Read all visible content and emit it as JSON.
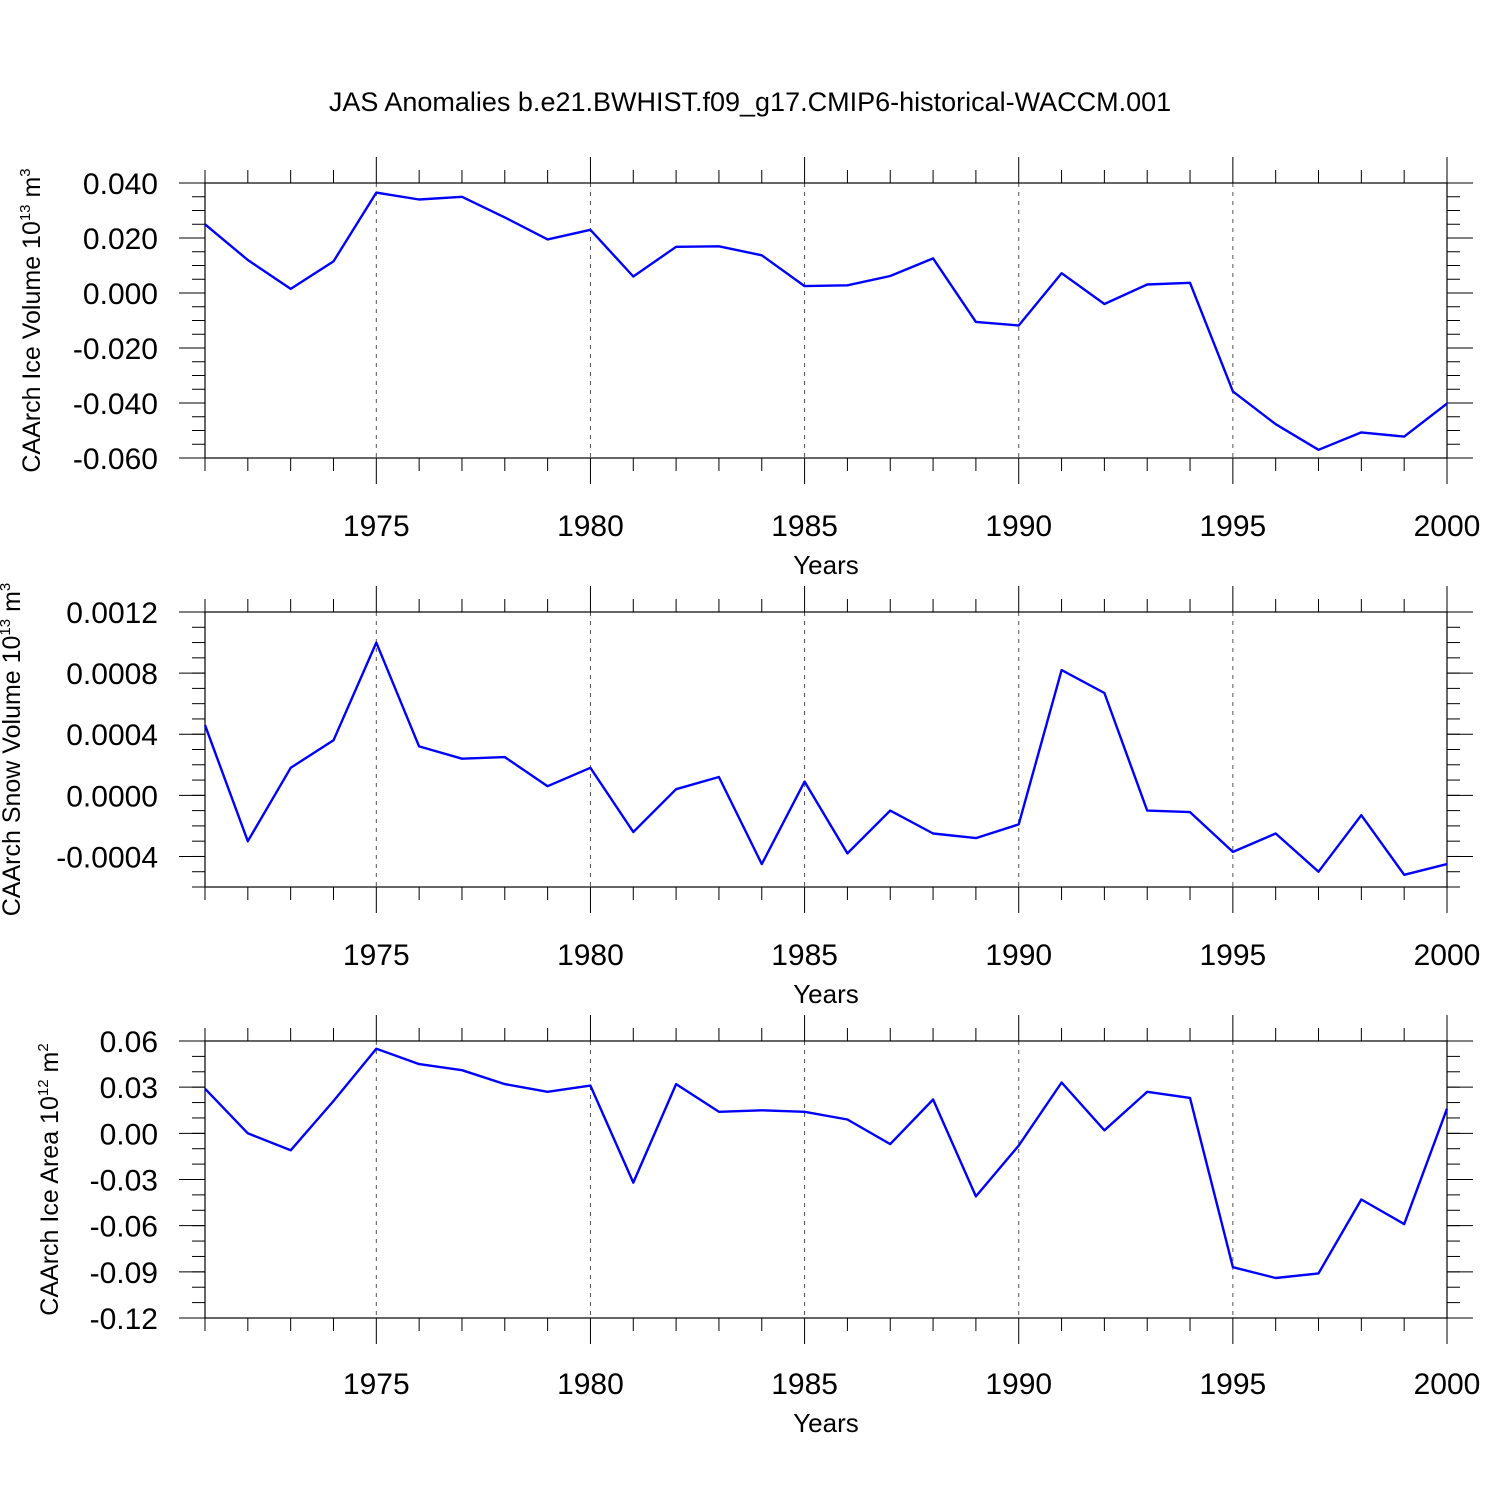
{
  "title": "JAS Anomalies b.e21.BWHIST.f09_g17.CMIP6-historical-WACCM.001",
  "line_color": "#0000ff",
  "chart_data": [
    {
      "type": "line",
      "title": "JAS Anomalies b.e21.BWHIST.f09_g17.CMIP6-historical-WACCM.001",
      "xlabel": "Years",
      "ylabel": {
        "base": "CAArch Ice Volume 10",
        "sup1": "13",
        "mid": " m",
        "sup2": "3"
      },
      "xlim": [
        1971,
        2000
      ],
      "ylim": [
        -0.06,
        0.04
      ],
      "x_ticks": [
        1975,
        1980,
        1985,
        1990,
        1995,
        2000
      ],
      "x_tick_labels": [
        "1975",
        "1980",
        "1985",
        "1990",
        "1995",
        "2000"
      ],
      "y_ticks": [
        0.04,
        0.02,
        0.0,
        -0.02,
        -0.04,
        -0.06
      ],
      "y_tick_labels": [
        "0.040",
        "0.020",
        "0.000",
        "-0.020",
        "-0.040",
        "-0.060"
      ],
      "y_minor_step": 0.005,
      "grid": "dashed vertical at major x ticks",
      "x": [
        1971,
        1972,
        1973,
        1974,
        1975,
        1976,
        1977,
        1978,
        1979,
        1980,
        1981,
        1982,
        1983,
        1984,
        1985,
        1986,
        1987,
        1988,
        1989,
        1990,
        1991,
        1992,
        1993,
        1994,
        1995,
        1996,
        1997,
        1998,
        1999,
        2000
      ],
      "y": [
        0.025,
        0.012,
        0.0015,
        0.0115,
        0.0365,
        0.034,
        0.035,
        0.0275,
        0.0195,
        0.023,
        0.006,
        0.0168,
        0.017,
        0.0137,
        0.0025,
        0.0028,
        0.0062,
        0.0126,
        -0.0105,
        -0.0118,
        0.0072,
        -0.004,
        0.0031,
        0.0037,
        -0.0358,
        -0.0477,
        -0.057,
        -0.0507,
        -0.0522,
        -0.0402
      ]
    },
    {
      "type": "line",
      "xlabel": "Years",
      "ylabel": {
        "base": "CAArch Snow Volume 10",
        "sup1": "13",
        "mid": " m",
        "sup2": "3"
      },
      "xlim": [
        1971,
        2000
      ],
      "ylim": [
        -0.0006,
        0.0012
      ],
      "x_ticks": [
        1975,
        1980,
        1985,
        1990,
        1995,
        2000
      ],
      "x_tick_labels": [
        "1975",
        "1980",
        "1985",
        "1990",
        "1995",
        "2000"
      ],
      "y_ticks": [
        0.0012,
        0.0008,
        0.0004,
        0.0,
        -0.0004
      ],
      "y_tick_labels": [
        "0.0012",
        "0.0008",
        "0.0004",
        "0.0000",
        "-0.0004"
      ],
      "y_minor_step": 0.0001,
      "grid": "dashed vertical at major x ticks",
      "x": [
        1971,
        1972,
        1973,
        1974,
        1975,
        1976,
        1977,
        1978,
        1979,
        1980,
        1981,
        1982,
        1983,
        1984,
        1985,
        1986,
        1987,
        1988,
        1989,
        1990,
        1991,
        1992,
        1993,
        1994,
        1995,
        1996,
        1997,
        1998,
        1999,
        2000
      ],
      "y": [
        0.00046,
        -0.0003,
        0.00018,
        0.00036,
        0.001,
        0.00032,
        0.00024,
        0.00025,
        6e-05,
        0.00018,
        -0.00024,
        4e-05,
        0.00012,
        -0.00045,
        9e-05,
        -0.00038,
        -0.0001,
        -0.00025,
        -0.00028,
        -0.00019,
        0.00082,
        0.00067,
        -0.0001,
        -0.00011,
        -0.00037,
        -0.00025,
        -0.0005,
        -0.00013,
        -0.00052,
        -0.00045
      ]
    },
    {
      "type": "line",
      "xlabel": "Years",
      "ylabel": {
        "base": "CAArch Ice Area 10",
        "sup1": "12",
        "mid": " m",
        "sup2": "2"
      },
      "xlim": [
        1971,
        2000
      ],
      "ylim": [
        -0.12,
        0.06
      ],
      "x_ticks": [
        1975,
        1980,
        1985,
        1990,
        1995,
        2000
      ],
      "x_tick_labels": [
        "1975",
        "1980",
        "1985",
        "1990",
        "1995",
        "2000"
      ],
      "y_ticks": [
        0.06,
        0.03,
        0.0,
        -0.03,
        -0.06,
        -0.09,
        -0.12
      ],
      "y_tick_labels": [
        "0.06",
        "0.03",
        "0.00",
        "-0.03",
        "-0.06",
        "-0.09",
        "-0.12"
      ],
      "y_minor_step": 0.01,
      "grid": "dashed vertical at major x ticks",
      "x": [
        1971,
        1972,
        1973,
        1974,
        1975,
        1976,
        1977,
        1978,
        1979,
        1980,
        1981,
        1982,
        1983,
        1984,
        1985,
        1986,
        1987,
        1988,
        1989,
        1990,
        1991,
        1992,
        1993,
        1994,
        1995,
        1996,
        1997,
        1998,
        1999,
        2000
      ],
      "y": [
        0.029,
        0.0,
        -0.011,
        0.021,
        0.055,
        0.045,
        0.041,
        0.032,
        0.027,
        0.031,
        -0.032,
        0.032,
        0.014,
        0.015,
        0.014,
        0.009,
        -0.007,
        0.022,
        -0.041,
        -0.008,
        0.033,
        0.002,
        0.027,
        0.023,
        -0.087,
        -0.094,
        -0.091,
        -0.043,
        -0.059,
        0.016
      ]
    }
  ]
}
